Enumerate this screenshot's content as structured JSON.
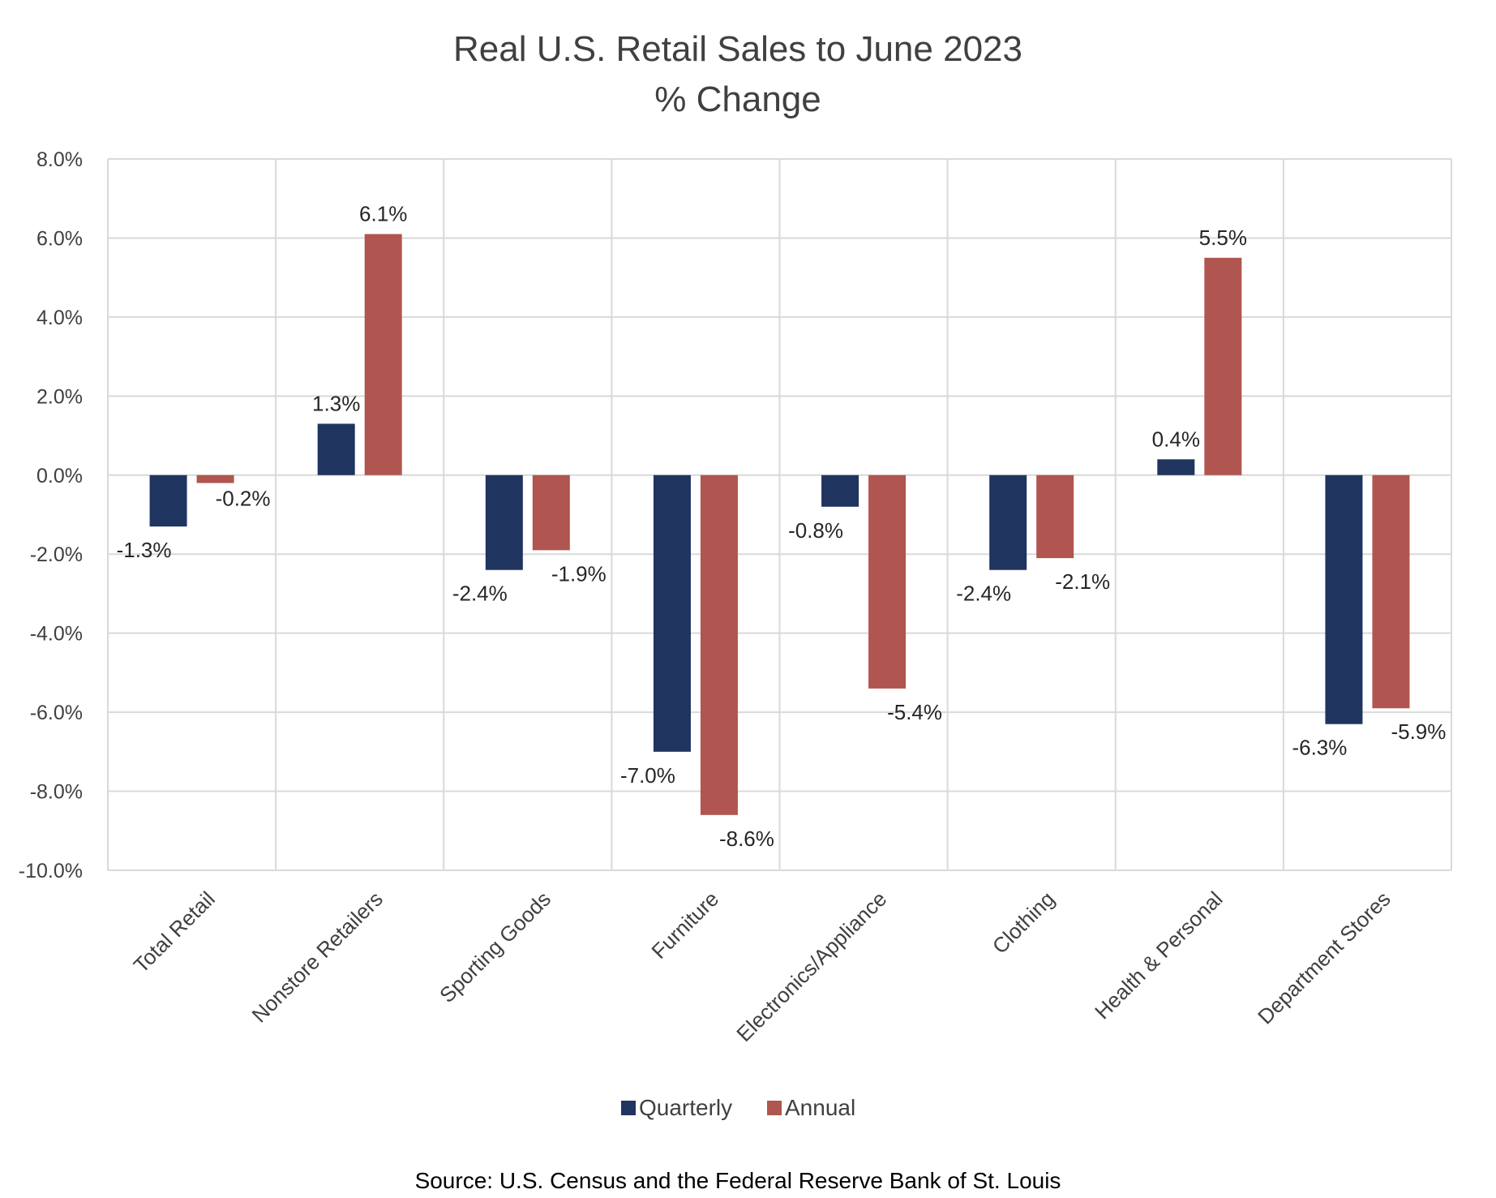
{
  "chart_data": {
    "type": "bar",
    "title": "Real U.S. Retail Sales to June 2023",
    "subtitle": "% Change",
    "categories": [
      "Total Retail",
      "Nonstore Retailers",
      "Sporting Goods",
      "Furniture",
      "Electronics/Appliance",
      "Clothing",
      "Health & Personal",
      "Department Stores"
    ],
    "series": [
      {
        "name": "Quarterly",
        "color": "#1f3560",
        "values": [
          -1.3,
          1.3,
          -2.4,
          -7.0,
          -0.8,
          -2.4,
          0.4,
          -6.3
        ],
        "labels": [
          "-1.3%",
          "1.3%",
          "-2.4%",
          "-7.0%",
          "-0.8%",
          "-2.4%",
          "0.4%",
          "-6.3%"
        ]
      },
      {
        "name": "Annual",
        "color": "#b0554f",
        "values": [
          -0.2,
          6.1,
          -1.9,
          -8.6,
          -5.4,
          -2.1,
          5.5,
          -5.9
        ],
        "labels": [
          "-0.2%",
          "6.1%",
          "-1.9%",
          "-8.6%",
          "-5.4%",
          "-2.1%",
          "5.5%",
          "-5.9%"
        ]
      }
    ],
    "ylim": [
      -10.0,
      8.0
    ],
    "yticks": [
      8.0,
      6.0,
      4.0,
      2.0,
      0.0,
      -2.0,
      -4.0,
      -6.0,
      -8.0,
      -10.0
    ],
    "ytick_labels": [
      "8.0%",
      "6.0%",
      "4.0%",
      "2.0%",
      "0.0%",
      "-2.0%",
      "-4.0%",
      "-6.0%",
      "-8.0%",
      "-10.0%"
    ],
    "xlabel": "",
    "ylabel": "",
    "grid": true,
    "legend_position": "bottom",
    "source": "Source: U.S. Census and the Federal Reserve Bank of St. Louis"
  }
}
